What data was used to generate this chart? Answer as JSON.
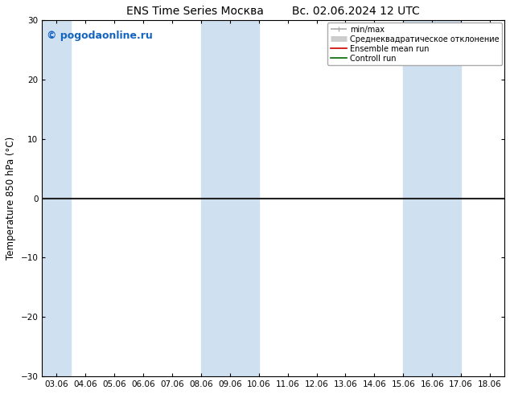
{
  "title": "ENS Time Series Москва        Вс. 02.06.2024 12 UTC",
  "ylabel": "Temperature 850 hPa (°C)",
  "ylim": [
    -30,
    30
  ],
  "yticks": [
    -30,
    -20,
    -10,
    0,
    10,
    20,
    30
  ],
  "xtick_labels": [
    "03.06",
    "04.06",
    "05.06",
    "06.06",
    "07.06",
    "08.06",
    "09.06",
    "10.06",
    "11.06",
    "12.06",
    "13.06",
    "14.06",
    "15.06",
    "16.06",
    "17.06",
    "18.06"
  ],
  "bg_color": "#ffffff",
  "shaded_bands": [
    {
      "xstart": -0.5,
      "xend": 0.5,
      "color": "#cfe0f0"
    },
    {
      "xstart": 5,
      "xend": 7,
      "color": "#cfe0f0"
    },
    {
      "xstart": 12,
      "xend": 14,
      "color": "#cfe0f0"
    }
  ],
  "zero_line_color": "#222222",
  "zero_line_lw": 1.5,
  "border_color": "#000000",
  "copyright_text": "© pogodaonline.ru",
  "copyright_color": "#1565c0",
  "legend_items": [
    {
      "label": "min/max",
      "color": "#aaaaaa",
      "lw": 1.2
    },
    {
      "label": "Среднеквадратическое отклонение",
      "color": "#cccccc",
      "lw": 5
    },
    {
      "label": "Ensemble mean run",
      "color": "#cc0000",
      "lw": 1.2
    },
    {
      "label": "Controll run",
      "color": "#006600",
      "lw": 1.2
    }
  ],
  "title_fontsize": 10,
  "tick_fontsize": 7.5,
  "ylabel_fontsize": 8.5,
  "copyright_fontsize": 9
}
